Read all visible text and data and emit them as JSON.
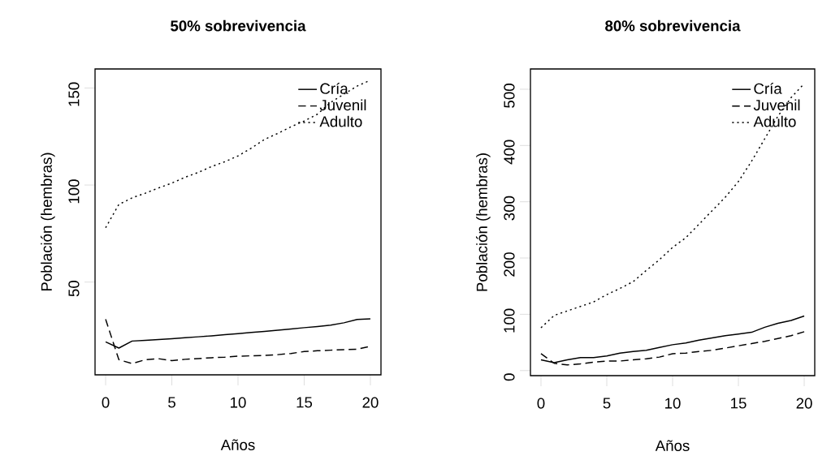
{
  "chart_data": [
    {
      "type": "line",
      "title": "50% sobrevivencia",
      "xlabel": "Años",
      "ylabel": "Población (hembras)",
      "legend": "top right",
      "marker": "none",
      "x": [
        0,
        1,
        2,
        3,
        4,
        5,
        6,
        7,
        8,
        9,
        10,
        11,
        12,
        13,
        14,
        15,
        16,
        17,
        18,
        19,
        20
      ],
      "xlim": [
        -0.8,
        20.8
      ],
      "ylim": [
        2.2,
        159.8
      ],
      "xticks": [
        0,
        5,
        10,
        15,
        20
      ],
      "yticks": [
        50,
        100,
        150
      ],
      "series": [
        {
          "name": "Cría",
          "color": "#000000",
          "line_style": "solid",
          "values": [
            19.2,
            16,
            19.6,
            20,
            20.4,
            20.8,
            21.3,
            21.8,
            22.3,
            22.9,
            23.4,
            24,
            24.6,
            25.2,
            25.8,
            26.5,
            27.1,
            27.8,
            29,
            30.7,
            31
          ]
        },
        {
          "name": "Juvenil",
          "color": "#000000",
          "line_style": "dashed",
          "values": [
            30.8,
            10,
            8,
            10,
            10.5,
            9.5,
            10.2,
            10.6,
            11,
            11.3,
            11.8,
            12,
            12.2,
            12.6,
            13.2,
            14.2,
            14.6,
            14.9,
            15.2,
            15.4,
            16.9
          ]
        },
        {
          "name": "Adulto",
          "color": "#000000",
          "line_style": "dotted",
          "values": [
            78,
            90,
            93.4,
            95.8,
            98.5,
            101,
            104,
            106.5,
            109.5,
            112,
            115,
            119,
            123.5,
            126.6,
            130,
            133,
            136.5,
            142.6,
            146.8,
            151,
            154
          ]
        }
      ]
    },
    {
      "type": "line",
      "title": "80% sobrevivencia",
      "xlabel": "Años",
      "ylabel": "Población (hembras)",
      "legend": "top right",
      "marker": "none",
      "x": [
        0,
        1,
        2,
        3,
        4,
        5,
        6,
        7,
        8,
        9,
        10,
        11,
        12,
        13,
        14,
        15,
        16,
        17,
        18,
        19,
        20
      ],
      "xlim": [
        -0.8,
        20.8
      ],
      "ylim": [
        -9,
        536
      ],
      "xticks": [
        0,
        5,
        10,
        15,
        20
      ],
      "yticks": [
        0,
        100,
        200,
        300,
        400,
        500
      ],
      "series": [
        {
          "name": "Cría",
          "color": "#000000",
          "line_style": "solid",
          "values": [
            19,
            14,
            19,
            23,
            23,
            26,
            31,
            34,
            36,
            41,
            46,
            49,
            54,
            58,
            62,
            65,
            68,
            77,
            84,
            89,
            97
          ]
        },
        {
          "name": "Juvenil",
          "color": "#000000",
          "line_style": "dashed",
          "values": [
            30,
            13,
            10,
            12,
            15,
            17,
            17,
            19,
            21,
            24,
            30,
            31,
            34,
            36,
            40,
            44,
            48,
            52,
            57,
            62,
            69
          ]
        },
        {
          "name": "Adulto",
          "color": "#000000",
          "line_style": "dotted",
          "values": [
            76,
            98,
            106,
            114,
            122,
            135,
            146,
            158,
            178,
            197,
            219,
            236,
            260,
            284,
            308,
            336,
            372,
            412,
            452,
            485,
            510
          ]
        }
      ]
    }
  ]
}
